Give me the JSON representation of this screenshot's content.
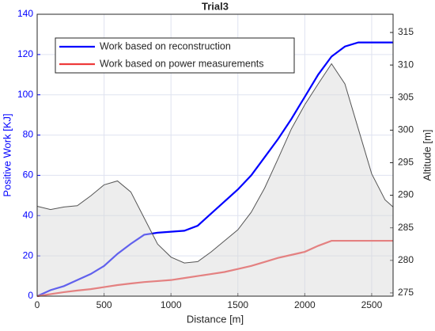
{
  "chart_data": {
    "type": "line",
    "title": "Trial3",
    "x_label": "Distance [m]",
    "y_label": "Positive Work [KJ]",
    "y2_label": "Altitude [m]",
    "x": [
      0,
      100,
      200,
      300,
      400,
      500,
      600,
      700,
      800,
      900,
      1000,
      1100,
      1200,
      1300,
      1400,
      1500,
      1600,
      1700,
      1800,
      1900,
      2000,
      2100,
      2200,
      2300,
      2400,
      2500,
      2600,
      2660
    ],
    "series": [
      {
        "name": "Work based on reconstruction",
        "color": "#0000ff",
        "values": [
          0,
          3,
          5,
          8,
          11,
          15,
          21,
          26,
          30.5,
          31.5,
          32,
          32.5,
          35,
          41,
          47,
          53,
          60,
          69,
          78,
          88,
          99,
          110,
          119,
          124,
          126,
          126,
          126,
          126
        ]
      },
      {
        "name": "Work based on power measurements",
        "color": "#ee3b3b",
        "values": [
          0,
          1,
          2,
          2.8,
          3.5,
          4.5,
          5.5,
          6.3,
          7,
          7.5,
          8,
          9,
          10,
          11,
          12,
          13.5,
          15,
          17,
          19,
          20.5,
          22,
          25,
          27.5,
          27.5,
          27.5,
          27.5,
          27.5,
          27.5
        ]
      },
      {
        "axis": "y2",
        "style": "area",
        "color": "#555555",
        "values": [
          288.3,
          287.8,
          288.2,
          288.4,
          289.9,
          291.6,
          292.2,
          290.5,
          286.5,
          282.5,
          280.5,
          279.6,
          279.8,
          281.3,
          283.0,
          284.7,
          287.4,
          291.1,
          295.6,
          300.2,
          303.9,
          307.1,
          310.2,
          307.1,
          300.2,
          293.3,
          289.3,
          288.2
        ]
      }
    ],
    "xlim": [
      0,
      2660
    ],
    "xticks": [
      0,
      500,
      1000,
      1500,
      2000,
      2500
    ],
    "ylim": [
      0,
      140
    ],
    "yticks": [
      0,
      20,
      40,
      60,
      80,
      100,
      120,
      140
    ],
    "y_label_color": "#0000ff",
    "y2lim": [
      274.5,
      317.8
    ],
    "y2ticks": [
      275,
      280,
      285,
      290,
      295,
      300,
      305,
      310,
      315
    ],
    "grid": true,
    "legend": "upper left"
  }
}
